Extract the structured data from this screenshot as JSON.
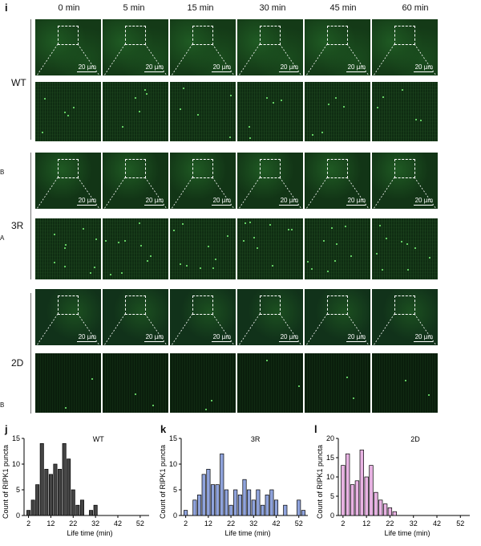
{
  "figure": {
    "panel_i": "i",
    "timepoints": [
      "0 min",
      "5 min",
      "15 min",
      "30 min",
      "45 min",
      "60 min"
    ],
    "rows": [
      {
        "label": "WT",
        "scale_bar": "20 µm"
      },
      {
        "label": "3R",
        "scale_bar": "20 µm"
      },
      {
        "label": "2D",
        "scale_bar": "20 µm"
      }
    ],
    "edge_marks": [
      "B",
      "A",
      "B"
    ]
  },
  "panels": {
    "j": {
      "letter": "j",
      "label": "WT"
    },
    "k": {
      "letter": "k",
      "label": "3R"
    },
    "l": {
      "letter": "l",
      "label": "2D"
    }
  },
  "chart_data": [
    {
      "type": "bar",
      "title": "WT",
      "xlabel": "Life time (min)",
      "ylabel": "Count of RIPK1 puncta",
      "x": [
        2,
        4,
        6,
        8,
        10,
        12,
        14,
        16,
        18,
        20,
        22,
        24,
        26,
        28,
        30,
        32,
        34
      ],
      "values": [
        1,
        3,
        6,
        14,
        9,
        8,
        10,
        9,
        14,
        11,
        5,
        2,
        3,
        0,
        1,
        2,
        0
      ],
      "ylim": [
        0,
        15
      ],
      "yticks": [
        0,
        5,
        10,
        15
      ],
      "xticks": [
        2,
        12,
        22,
        32,
        42,
        52
      ],
      "xlim": [
        0,
        56
      ],
      "color": "#444444"
    },
    {
      "type": "bar",
      "title": "3R",
      "xlabel": "Life time (min)",
      "ylabel": "Count of RIPK1 puncta",
      "x": [
        2,
        4,
        6,
        8,
        10,
        12,
        14,
        16,
        18,
        20,
        22,
        24,
        26,
        28,
        30,
        32,
        34,
        36,
        38,
        40,
        42,
        44,
        46,
        48,
        50,
        52,
        54
      ],
      "values": [
        1,
        0,
        3,
        4,
        8,
        9,
        6,
        6,
        12,
        5,
        2,
        5,
        4,
        7,
        5,
        3,
        5,
        2,
        4,
        5,
        3,
        0,
        2,
        0,
        0,
        3,
        1
      ],
      "ylim": [
        0,
        15
      ],
      "yticks": [
        0,
        5,
        10,
        15
      ],
      "xticks": [
        2,
        12,
        22,
        32,
        42,
        52
      ],
      "xlim": [
        0,
        56
      ],
      "color": "#8fa3dc"
    },
    {
      "type": "bar",
      "title": "2D",
      "xlabel": "Life time (min)",
      "ylabel": "Count of RIPK1 puncta",
      "x": [
        2,
        4,
        6,
        8,
        10,
        12,
        14,
        16,
        18,
        20,
        22,
        24
      ],
      "values": [
        13,
        16,
        8,
        9,
        17,
        10,
        13,
        6,
        4,
        3,
        2,
        1
      ],
      "ylim": [
        0,
        20
      ],
      "yticks": [
        0,
        5,
        10,
        15,
        20
      ],
      "xticks": [
        2,
        12,
        22,
        32,
        42,
        52
      ],
      "xlim": [
        0,
        56
      ],
      "color": "#e8b3e3"
    }
  ]
}
